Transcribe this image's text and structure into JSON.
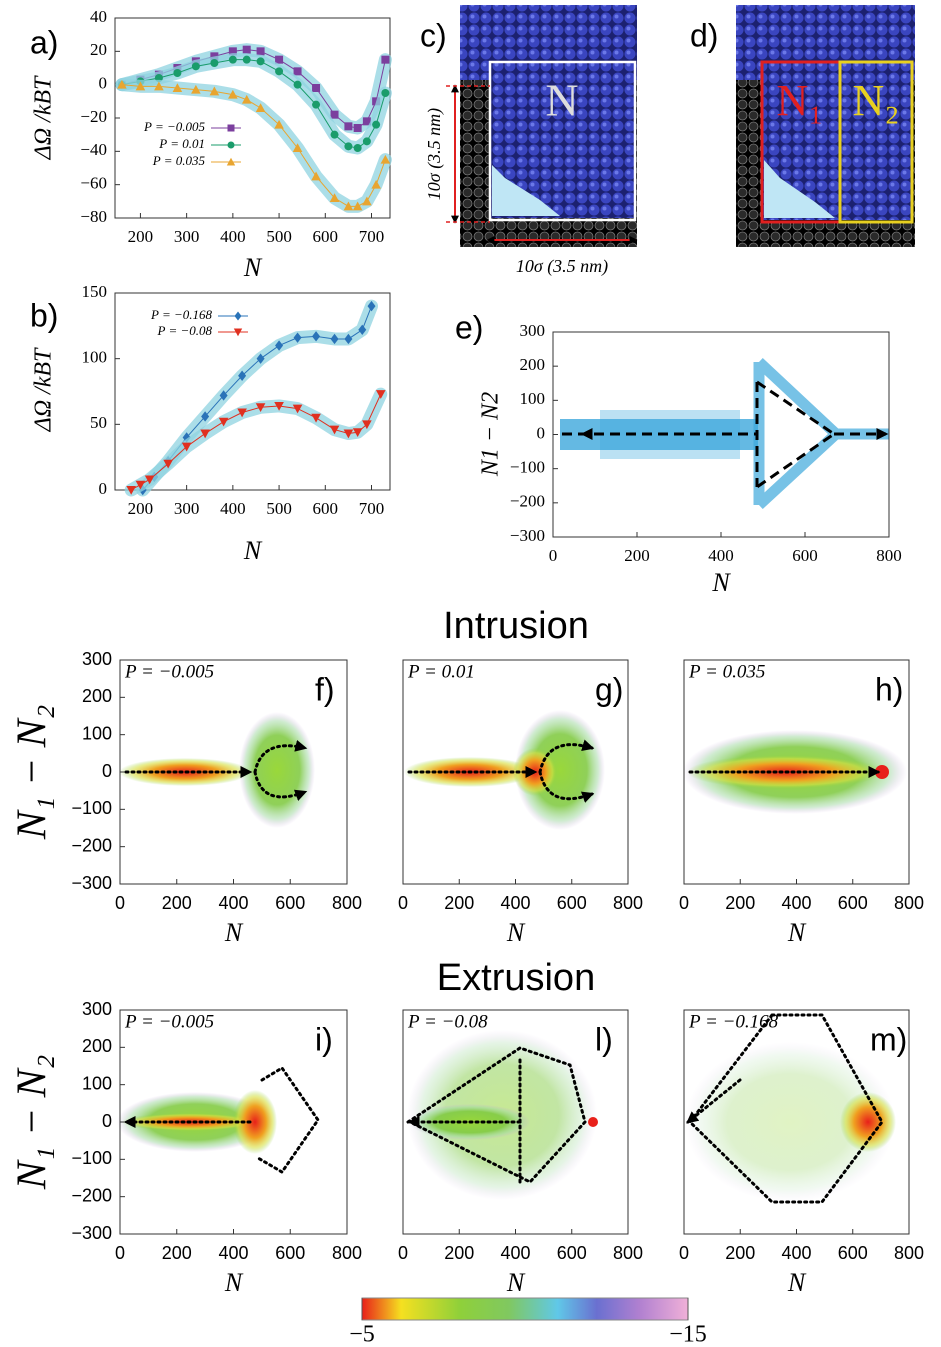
{
  "figure": {
    "headings": [
      "Intrusion",
      "Extrusion"
    ],
    "panel_c": {
      "label": "c)",
      "region": "N",
      "height_label": "10σ (3.5 nm)",
      "width_label": "10σ (3.5 nm)"
    },
    "panel_d": {
      "label": "d)",
      "regions": [
        "N₁",
        "N₂"
      ]
    },
    "colorbar": {
      "lim": [
        -5,
        -15
      ],
      "ticks": [
        {
          "value": -5,
          "label": "−5"
        },
        {
          "value": -15,
          "label": "−15"
        }
      ]
    }
  },
  "chart_data": [
    {
      "type": "line",
      "panel": "a)",
      "xlabel": "N",
      "ylabel": "ΔΩ /kBT",
      "xlim": [
        145,
        740
      ],
      "ylim": [
        -80,
        40
      ],
      "xticks": [
        200,
        300,
        400,
        500,
        600,
        700
      ],
      "yticks": [
        {
          "value": -80,
          "label": "−80"
        },
        {
          "value": -60,
          "label": "−60"
        },
        {
          "value": -40,
          "label": "−40"
        },
        {
          "value": -20,
          "label": "−20"
        },
        0,
        20,
        40
      ],
      "series": [
        {
          "name": "P = −0.005",
          "color": "#7b3f9e",
          "marker": "square",
          "x": [
            160,
            200,
            240,
            280,
            320,
            360,
            400,
            430,
            460,
            500,
            540,
            580,
            620,
            650,
            670,
            690,
            710,
            730
          ],
          "values": [
            0,
            3,
            6,
            10,
            14,
            17,
            20,
            21,
            20,
            15,
            8,
            -2,
            -18,
            -25,
            -26,
            -22,
            -10,
            15
          ]
        },
        {
          "name": "P = 0.01",
          "color": "#1a9c6b",
          "marker": "circle",
          "x": [
            160,
            200,
            240,
            280,
            320,
            360,
            400,
            430,
            460,
            500,
            540,
            580,
            620,
            650,
            670,
            690,
            710,
            730
          ],
          "values": [
            0,
            2,
            4,
            7,
            11,
            13,
            15,
            15,
            14,
            8,
            0,
            -12,
            -30,
            -37,
            -38,
            -34,
            -24,
            -5
          ]
        },
        {
          "name": "P = 0.035",
          "color": "#e8a530",
          "marker": "triangle",
          "x": [
            160,
            200,
            240,
            280,
            320,
            360,
            400,
            430,
            460,
            500,
            540,
            580,
            620,
            650,
            670,
            690,
            710,
            730
          ],
          "values": [
            0,
            -1,
            -1,
            -2,
            -3,
            -4,
            -6,
            -9,
            -14,
            -24,
            -38,
            -55,
            -68,
            -73,
            -73,
            -70,
            -60,
            -45
          ]
        }
      ]
    },
    {
      "type": "line",
      "panel": "b)",
      "xlabel": "N",
      "ylabel": "ΔΩ /kBT",
      "xlim": [
        145,
        740
      ],
      "ylim": [
        0,
        150
      ],
      "xticks": [
        200,
        300,
        400,
        500,
        600,
        700
      ],
      "yticks": [
        0,
        50,
        100,
        150
      ],
      "series": [
        {
          "name": "P = −0.168",
          "color": "#2a73b8",
          "marker": "diamond",
          "x": [
            205,
            230,
            260,
            300,
            340,
            380,
            420,
            460,
            500,
            540,
            580,
            620,
            650,
            680,
            700
          ],
          "values": [
            0,
            10,
            22,
            40,
            56,
            72,
            87,
            100,
            110,
            116,
            117,
            115,
            115,
            122,
            140
          ]
        },
        {
          "name": "P = −0.08",
          "color": "#e03020",
          "marker": "triangle-down",
          "x": [
            180,
            200,
            220,
            260,
            300,
            340,
            380,
            420,
            460,
            500,
            540,
            580,
            620,
            650,
            670,
            690,
            720
          ],
          "values": [
            0,
            4,
            8,
            20,
            33,
            43,
            52,
            59,
            63,
            64,
            62,
            55,
            46,
            43,
            44,
            50,
            73
          ]
        }
      ]
    },
    {
      "type": "scatter",
      "panel": "e)",
      "xlabel": "N",
      "ylabel": "N1 − N2",
      "xlim": [
        0,
        800
      ],
      "ylim": [
        -300,
        300
      ],
      "xticks": [
        0,
        200,
        400,
        600,
        800
      ],
      "yticks": [
        {
          "value": -300,
          "label": "−300"
        },
        {
          "value": -200,
          "label": "−200"
        },
        {
          "value": -100,
          "label": "−100"
        },
        0,
        100,
        200,
        300
      ]
    },
    {
      "type": "density",
      "panel": "f)",
      "title": "P = −0.005",
      "xlabel": "N",
      "ylabel": "N₁ − N₂",
      "xlim": [
        0,
        800
      ],
      "ylim": [
        -300,
        300
      ],
      "xticks": [
        0,
        200,
        400,
        600,
        800
      ],
      "yticks": [
        {
          "value": -300,
          "label": "−300"
        },
        {
          "value": -200,
          "label": "−200"
        },
        {
          "value": -100,
          "label": "−100"
        },
        0,
        100,
        200,
        300
      ]
    },
    {
      "type": "density",
      "panel": "g)",
      "title": "P = 0.01",
      "xlabel": "N",
      "xlim": [
        0,
        800
      ],
      "ylim": [
        -300,
        300
      ],
      "xticks": [
        0,
        200,
        400,
        600,
        800
      ]
    },
    {
      "type": "density",
      "panel": "h)",
      "title": "P = 0.035",
      "xlabel": "N",
      "xlim": [
        0,
        800
      ],
      "ylim": [
        -300,
        300
      ],
      "xticks": [
        0,
        200,
        400,
        600,
        800
      ]
    },
    {
      "type": "density",
      "panel": "i)",
      "title": "P = −0.005",
      "xlabel": "N",
      "ylabel": "N₁ − N₂",
      "xlim": [
        0,
        800
      ],
      "ylim": [
        -300,
        300
      ],
      "xticks": [
        0,
        200,
        400,
        600,
        800
      ],
      "yticks": [
        {
          "value": -300,
          "label": "−300"
        },
        {
          "value": -200,
          "label": "−200"
        },
        {
          "value": -100,
          "label": "−100"
        },
        0,
        100,
        200,
        300
      ]
    },
    {
      "type": "density",
      "panel": "l)",
      "title": "P = −0.08",
      "xlabel": "N",
      "xlim": [
        0,
        800
      ],
      "ylim": [
        -300,
        300
      ],
      "xticks": [
        0,
        200,
        400,
        600,
        800
      ]
    },
    {
      "type": "density",
      "panel": "m)",
      "title": "P = −0.168",
      "xlabel": "N",
      "xlim": [
        0,
        800
      ],
      "ylim": [
        -300,
        300
      ],
      "xticks": [
        0,
        200,
        400,
        600,
        800
      ]
    }
  ]
}
